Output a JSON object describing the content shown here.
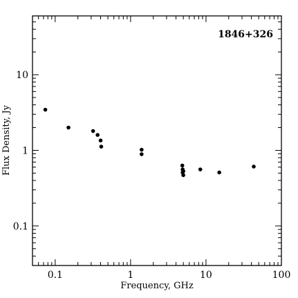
{
  "chart_data": {
    "type": "scatter",
    "title": "1846+326",
    "xlabel": "Frequency, GHz",
    "ylabel": "Flux Density, Jy",
    "xscale": "log",
    "yscale": "log",
    "xlim": [
      0.05,
      100
    ],
    "ylim": [
      0.03,
      60
    ],
    "x_tick_labels": [
      {
        "value": 0.1,
        "label": "0.1"
      },
      {
        "value": 1,
        "label": "1"
      },
      {
        "value": 10,
        "label": "10"
      },
      {
        "value": 100,
        "label": "100"
      }
    ],
    "y_tick_labels": [
      {
        "value": 0.1,
        "label": "0.1"
      },
      {
        "value": 1,
        "label": "1"
      },
      {
        "value": 10,
        "label": "10"
      }
    ],
    "grid": false,
    "title_position": "top-right",
    "marker_color": "#000000",
    "series": [
      {
        "points": [
          {
            "x": 0.074,
            "y": 3.45
          },
          {
            "x": 0.15,
            "y": 2.0
          },
          {
            "x": 0.318,
            "y": 1.8
          },
          {
            "x": 0.365,
            "y": 1.6
          },
          {
            "x": 0.4,
            "y": 1.35
          },
          {
            "x": 0.408,
            "y": 1.12
          },
          {
            "x": 1.4,
            "y": 1.02
          },
          {
            "x": 1.4,
            "y": 0.89
          },
          {
            "x": 4.85,
            "y": 0.63
          },
          {
            "x": 4.9,
            "y": 0.56
          },
          {
            "x": 5.0,
            "y": 0.53
          },
          {
            "x": 4.9,
            "y": 0.51
          },
          {
            "x": 5.0,
            "y": 0.47
          },
          {
            "x": 8.4,
            "y": 0.56
          },
          {
            "x": 15.0,
            "y": 0.51
          },
          {
            "x": 43.0,
            "y": 0.61
          }
        ]
      }
    ]
  }
}
